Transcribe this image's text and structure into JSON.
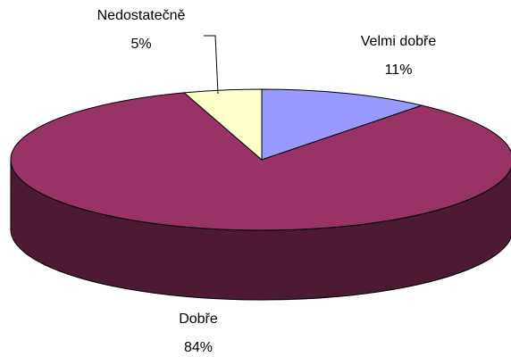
{
  "chart_data": {
    "type": "pie",
    "categories": [
      "Velmi dobře",
      "Dobře",
      "Nedostatečně"
    ],
    "values": [
      11,
      84,
      5
    ],
    "value_labels": [
      "11%",
      "84%",
      "5%"
    ],
    "colors": [
      "#9999ff",
      "#993366",
      "#ffffcc"
    ]
  }
}
